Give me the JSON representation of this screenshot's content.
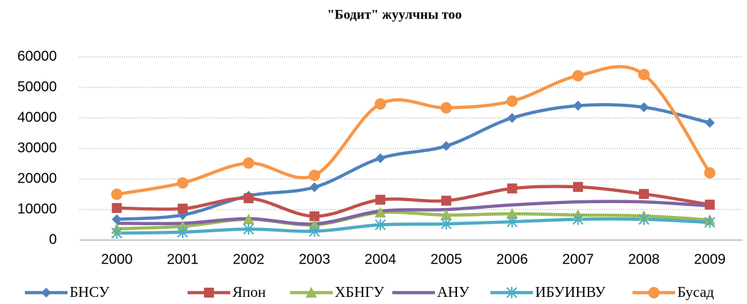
{
  "chart_data": {
    "type": "line",
    "title": "\"Бодит\" жуулчны тоо",
    "categories": [
      "2000",
      "2001",
      "2002",
      "2003",
      "2004",
      "2005",
      "2006",
      "2007",
      "2008",
      "2009"
    ],
    "series": [
      {
        "name": "БНСУ",
        "color": "#4f81bd",
        "marker": "diamond",
        "values": [
          6800,
          8200,
          14500,
          17300,
          26800,
          30800,
          40000,
          44000,
          43500,
          38400
        ]
      },
      {
        "name": "Япон",
        "color": "#c0504d",
        "marker": "square",
        "values": [
          10500,
          10300,
          13700,
          7800,
          13200,
          12900,
          16900,
          17400,
          15100,
          11600
        ]
      },
      {
        "name": "ХБНГУ",
        "color": "#9bbb59",
        "marker": "triangle",
        "values": [
          3700,
          4500,
          6800,
          5000,
          9000,
          8200,
          8600,
          8200,
          7900,
          6600
        ]
      },
      {
        "name": "АНУ",
        "color": "#8064a2",
        "marker": "none",
        "values": [
          5500,
          5500,
          7000,
          5300,
          9500,
          10000,
          11500,
          12500,
          12500,
          11200
        ]
      },
      {
        "name": "ИБУИНВУ",
        "color": "#4bacc6",
        "marker": "asterisk",
        "values": [
          2300,
          2600,
          3600,
          2900,
          5000,
          5300,
          6000,
          6800,
          6800,
          5800
        ]
      },
      {
        "name": "Бусад",
        "color": "#f79646",
        "marker": "circle",
        "values": [
          15000,
          18700,
          25200,
          21200,
          44600,
          43300,
          45500,
          53800,
          54200,
          22000
        ]
      }
    ],
    "ylim": [
      0,
      60000
    ],
    "yticks": [
      0,
      10000,
      20000,
      30000,
      40000,
      50000,
      60000
    ],
    "grid": true,
    "smooth": true,
    "legend": "bottom"
  }
}
